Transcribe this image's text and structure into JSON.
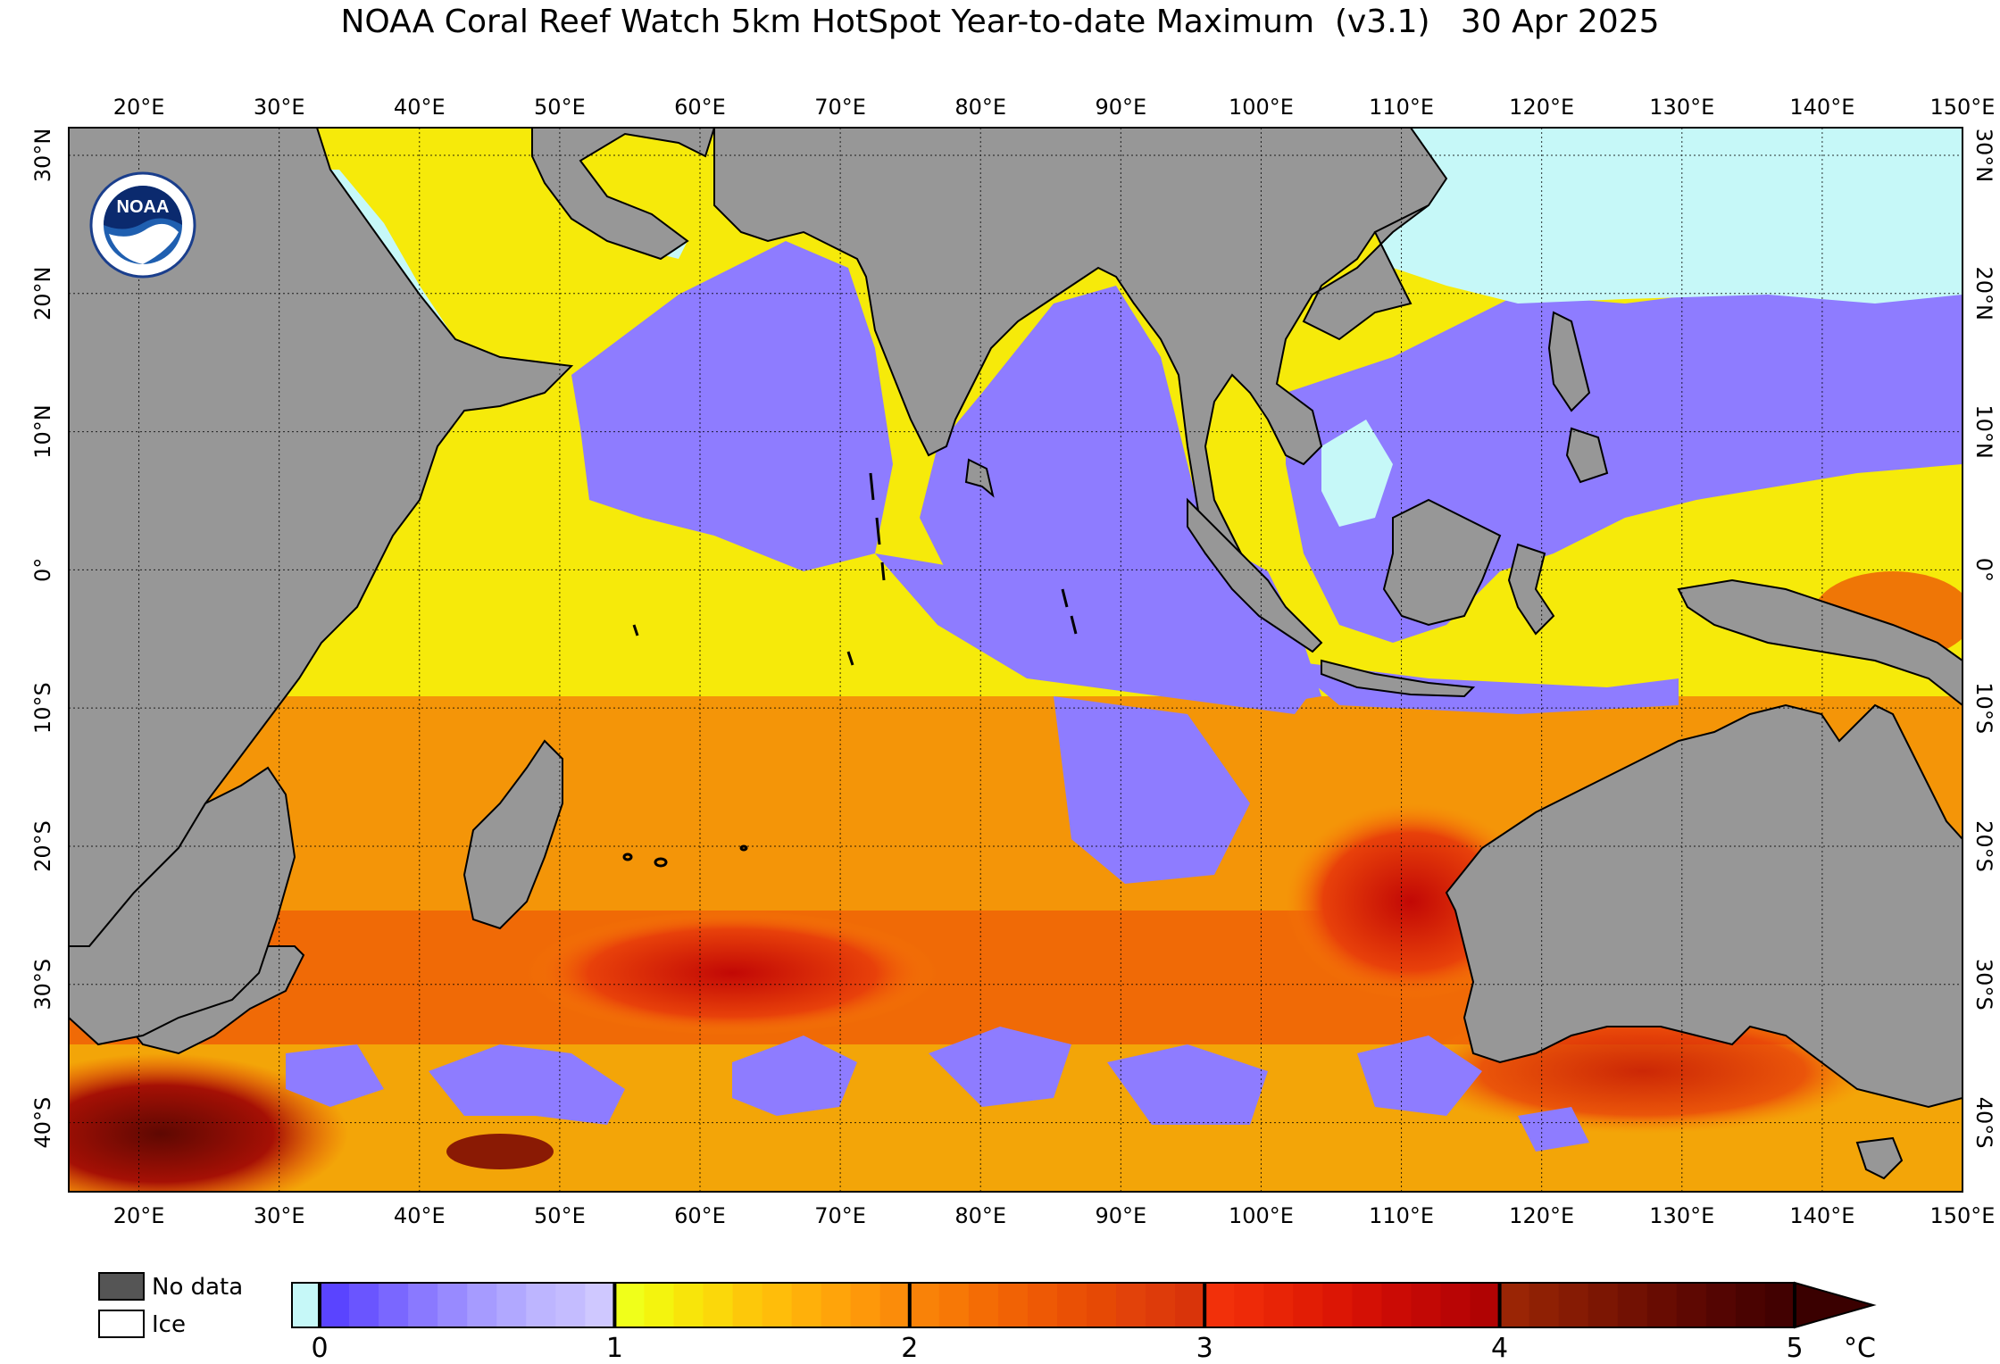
{
  "title": "NOAA Coral Reef Watch 5km HotSpot Year-to-date Maximum  (v3.1)   30 Apr 2025",
  "map": {
    "lon_labels": [
      "20°E",
      "30°E",
      "40°E",
      "50°E",
      "60°E",
      "70°E",
      "80°E",
      "90°E",
      "100°E",
      "110°E",
      "120°E",
      "130°E",
      "140°E",
      "150°E"
    ],
    "lat_labels": [
      "30°N",
      "20°N",
      "10°N",
      "0°",
      "10°S",
      "20°S",
      "30°S",
      "40°S"
    ],
    "lon_values": [
      20,
      30,
      40,
      50,
      60,
      70,
      80,
      90,
      100,
      110,
      120,
      130,
      140,
      150
    ],
    "lat_values": [
      30,
      20,
      10,
      0,
      -10,
      -20,
      -30,
      -40
    ],
    "lon_range": [
      15,
      150
    ],
    "lat_range": [
      -45,
      32
    ],
    "logo_text": "NOAA",
    "colors": {
      "land": "#979797",
      "ice": "#c6f8f8",
      "ocean_low": "#7c66ff",
      "ocean_mid": "#f5f20a",
      "ocean_high": "#e8410a"
    }
  },
  "legend": {
    "no_data_label": "No data",
    "ice_label": "Ice",
    "no_data_color": "#555555",
    "ice_color": "#ffffff"
  },
  "colorbar": {
    "ticks": [
      "0",
      "1",
      "2",
      "3",
      "4",
      "5"
    ],
    "unit": "°C",
    "min": 0,
    "max": 5,
    "zero_color": "#c6f8f8",
    "segments": [
      [
        "#5a44ff",
        "#6a55ff",
        "#7a67ff",
        "#8a79ff",
        "#988aff",
        "#a69bff",
        "#b1a8ff",
        "#bdb5ff",
        "#c4bcff",
        "#cfc8ff"
      ],
      [
        "#f0ff1a",
        "#f4f40e",
        "#f8e50a",
        "#fbd80a",
        "#fdc80a",
        "#ffbd0a",
        "#ffb00a",
        "#ffa40a",
        "#fe980a",
        "#fb8c0a"
      ],
      [
        "#f98208",
        "#f77806",
        "#f46c05",
        "#f16205",
        "#ee5905",
        "#ea5005",
        "#e64905",
        "#e2420a",
        "#de3b0a",
        "#d9340a"
      ],
      [
        "#f2300a",
        "#ee2a08",
        "#e82406",
        "#e21d05",
        "#dc1605",
        "#d41005",
        "#cb0b05",
        "#c20805",
        "#b90505",
        "#b00303"
      ],
      [
        "#9a2505",
        "#8f2004",
        "#861b04",
        "#7c1603",
        "#721103",
        "#680c02",
        "#5e0802",
        "#540502",
        "#4a0301",
        "#420101"
      ]
    ]
  }
}
